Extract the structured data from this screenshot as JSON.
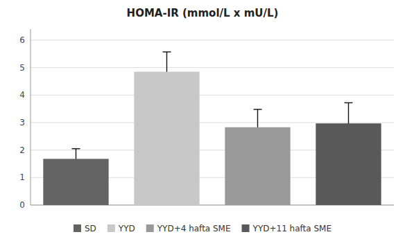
{
  "chart_data": {
    "type": "bar",
    "title": "HOMA-IR (mmol/L x mU/L)",
    "categories": [
      "SD",
      "YYD",
      "YYD+4 hafta SME",
      "YYD+11 hafta SME"
    ],
    "values": [
      1.68,
      4.85,
      2.83,
      2.97
    ],
    "errors": [
      0.37,
      0.72,
      0.65,
      0.75
    ],
    "colors": [
      "#636363",
      "#c8c8c8",
      "#999999",
      "#595959"
    ],
    "ylim": [
      0,
      6.4
    ],
    "yticks": [
      0,
      1,
      2,
      3,
      4,
      5,
      6
    ],
    "grid": true,
    "legend": "bottom",
    "tick_labels": "y"
  }
}
